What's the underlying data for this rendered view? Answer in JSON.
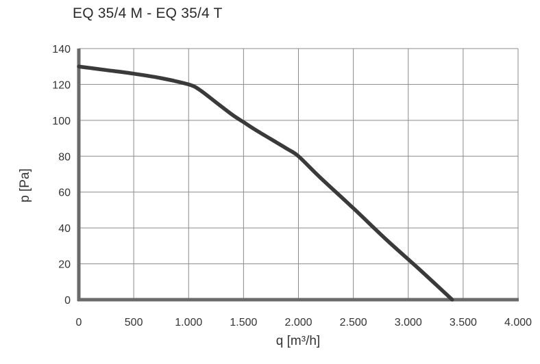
{
  "chart_data": {
    "type": "line",
    "title": "EQ 35/4 M - EQ 35/4 T",
    "xlabel": "q [m³/h]",
    "ylabel": "p [Pa]",
    "xlim": [
      0,
      4000
    ],
    "ylim": [
      0,
      140
    ],
    "grid": true,
    "x_ticks": [
      0,
      500,
      1000,
      1500,
      2000,
      2500,
      3000,
      3500,
      4000
    ],
    "x_tick_labels": [
      "0",
      "500",
      "1.000",
      "1.500",
      "2.000",
      "2.500",
      "3.000",
      "3.500",
      "4.000"
    ],
    "y_ticks": [
      0,
      20,
      40,
      60,
      80,
      100,
      120,
      140
    ],
    "y_tick_labels": [
      "0",
      "20",
      "40",
      "60",
      "80",
      "100",
      "120",
      "140"
    ],
    "series": [
      {
        "color": "#3a3a3a",
        "x": [
          0,
          250,
          500,
          750,
          1000,
          1100,
          1250,
          1400,
          1500,
          1600,
          1750,
          1900,
          2000,
          2200,
          2500,
          2800,
          3100,
          3400
        ],
        "y": [
          130,
          128,
          126,
          123.5,
          120,
          117,
          110,
          103,
          99,
          95,
          89.5,
          84,
          80,
          68,
          51,
          33.5,
          17,
          0
        ]
      }
    ]
  }
}
